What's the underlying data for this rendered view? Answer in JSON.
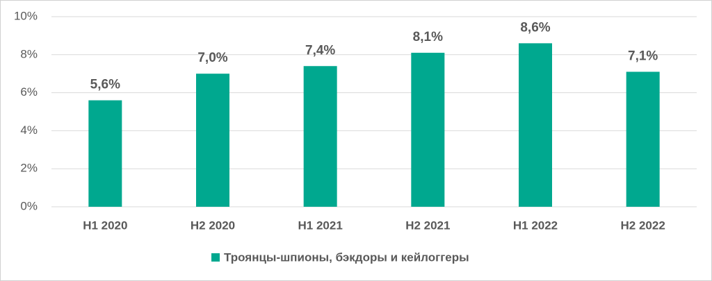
{
  "chart_data": {
    "type": "bar",
    "categories": [
      "H1 2020",
      "H2 2020",
      "H1 2021",
      "H2 2021",
      "H1 2022",
      "H2 2022"
    ],
    "series": [
      {
        "name": "Троянцы-шпионы, бэкдоры и кейлоггеры",
        "color": "#00a88f",
        "values": [
          5.6,
          7.0,
          7.4,
          8.1,
          8.6,
          7.1
        ],
        "value_labels": [
          "5,6%",
          "7,0%",
          "7,4%",
          "8,1%",
          "8,6%",
          "7,1%"
        ]
      }
    ],
    "ylim": [
      0,
      10
    ],
    "yticks": [
      {
        "value": 0,
        "label": "0%"
      },
      {
        "value": 2,
        "label": "2%"
      },
      {
        "value": 4,
        "label": "4%"
      },
      {
        "value": 6,
        "label": "6%"
      },
      {
        "value": 8,
        "label": "8%"
      },
      {
        "value": 10,
        "label": "10%"
      }
    ],
    "grid": true,
    "legend": "bottom"
  }
}
